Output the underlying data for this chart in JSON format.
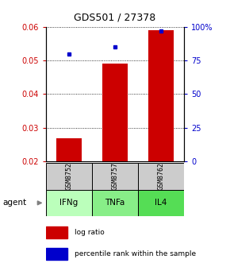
{
  "title": "GDS501 / 27378",
  "samples": [
    "GSM8752",
    "GSM8757",
    "GSM8762"
  ],
  "agents": [
    "IFNg",
    "TNFa",
    "IL4"
  ],
  "bar_values": [
    0.027,
    0.049,
    0.059
  ],
  "bar_base": 0.02,
  "percentile_values": [
    80,
    85,
    97
  ],
  "bar_color": "#cc0000",
  "dot_color": "#0000cc",
  "ylim_left": [
    0.02,
    0.06
  ],
  "ylim_right": [
    0,
    100
  ],
  "yticks_left": [
    0.02,
    0.03,
    0.04,
    0.05,
    0.06
  ],
  "yticks_right": [
    0,
    25,
    50,
    75,
    100
  ],
  "ytick_labels_right": [
    "0",
    "25",
    "50",
    "75",
    "100%"
  ],
  "agent_colors": [
    "#bbffbb",
    "#88ee88",
    "#55dd55"
  ],
  "sample_bg_color": "#cccccc",
  "bar_width": 0.55,
  "x_positions": [
    1,
    2,
    3
  ]
}
